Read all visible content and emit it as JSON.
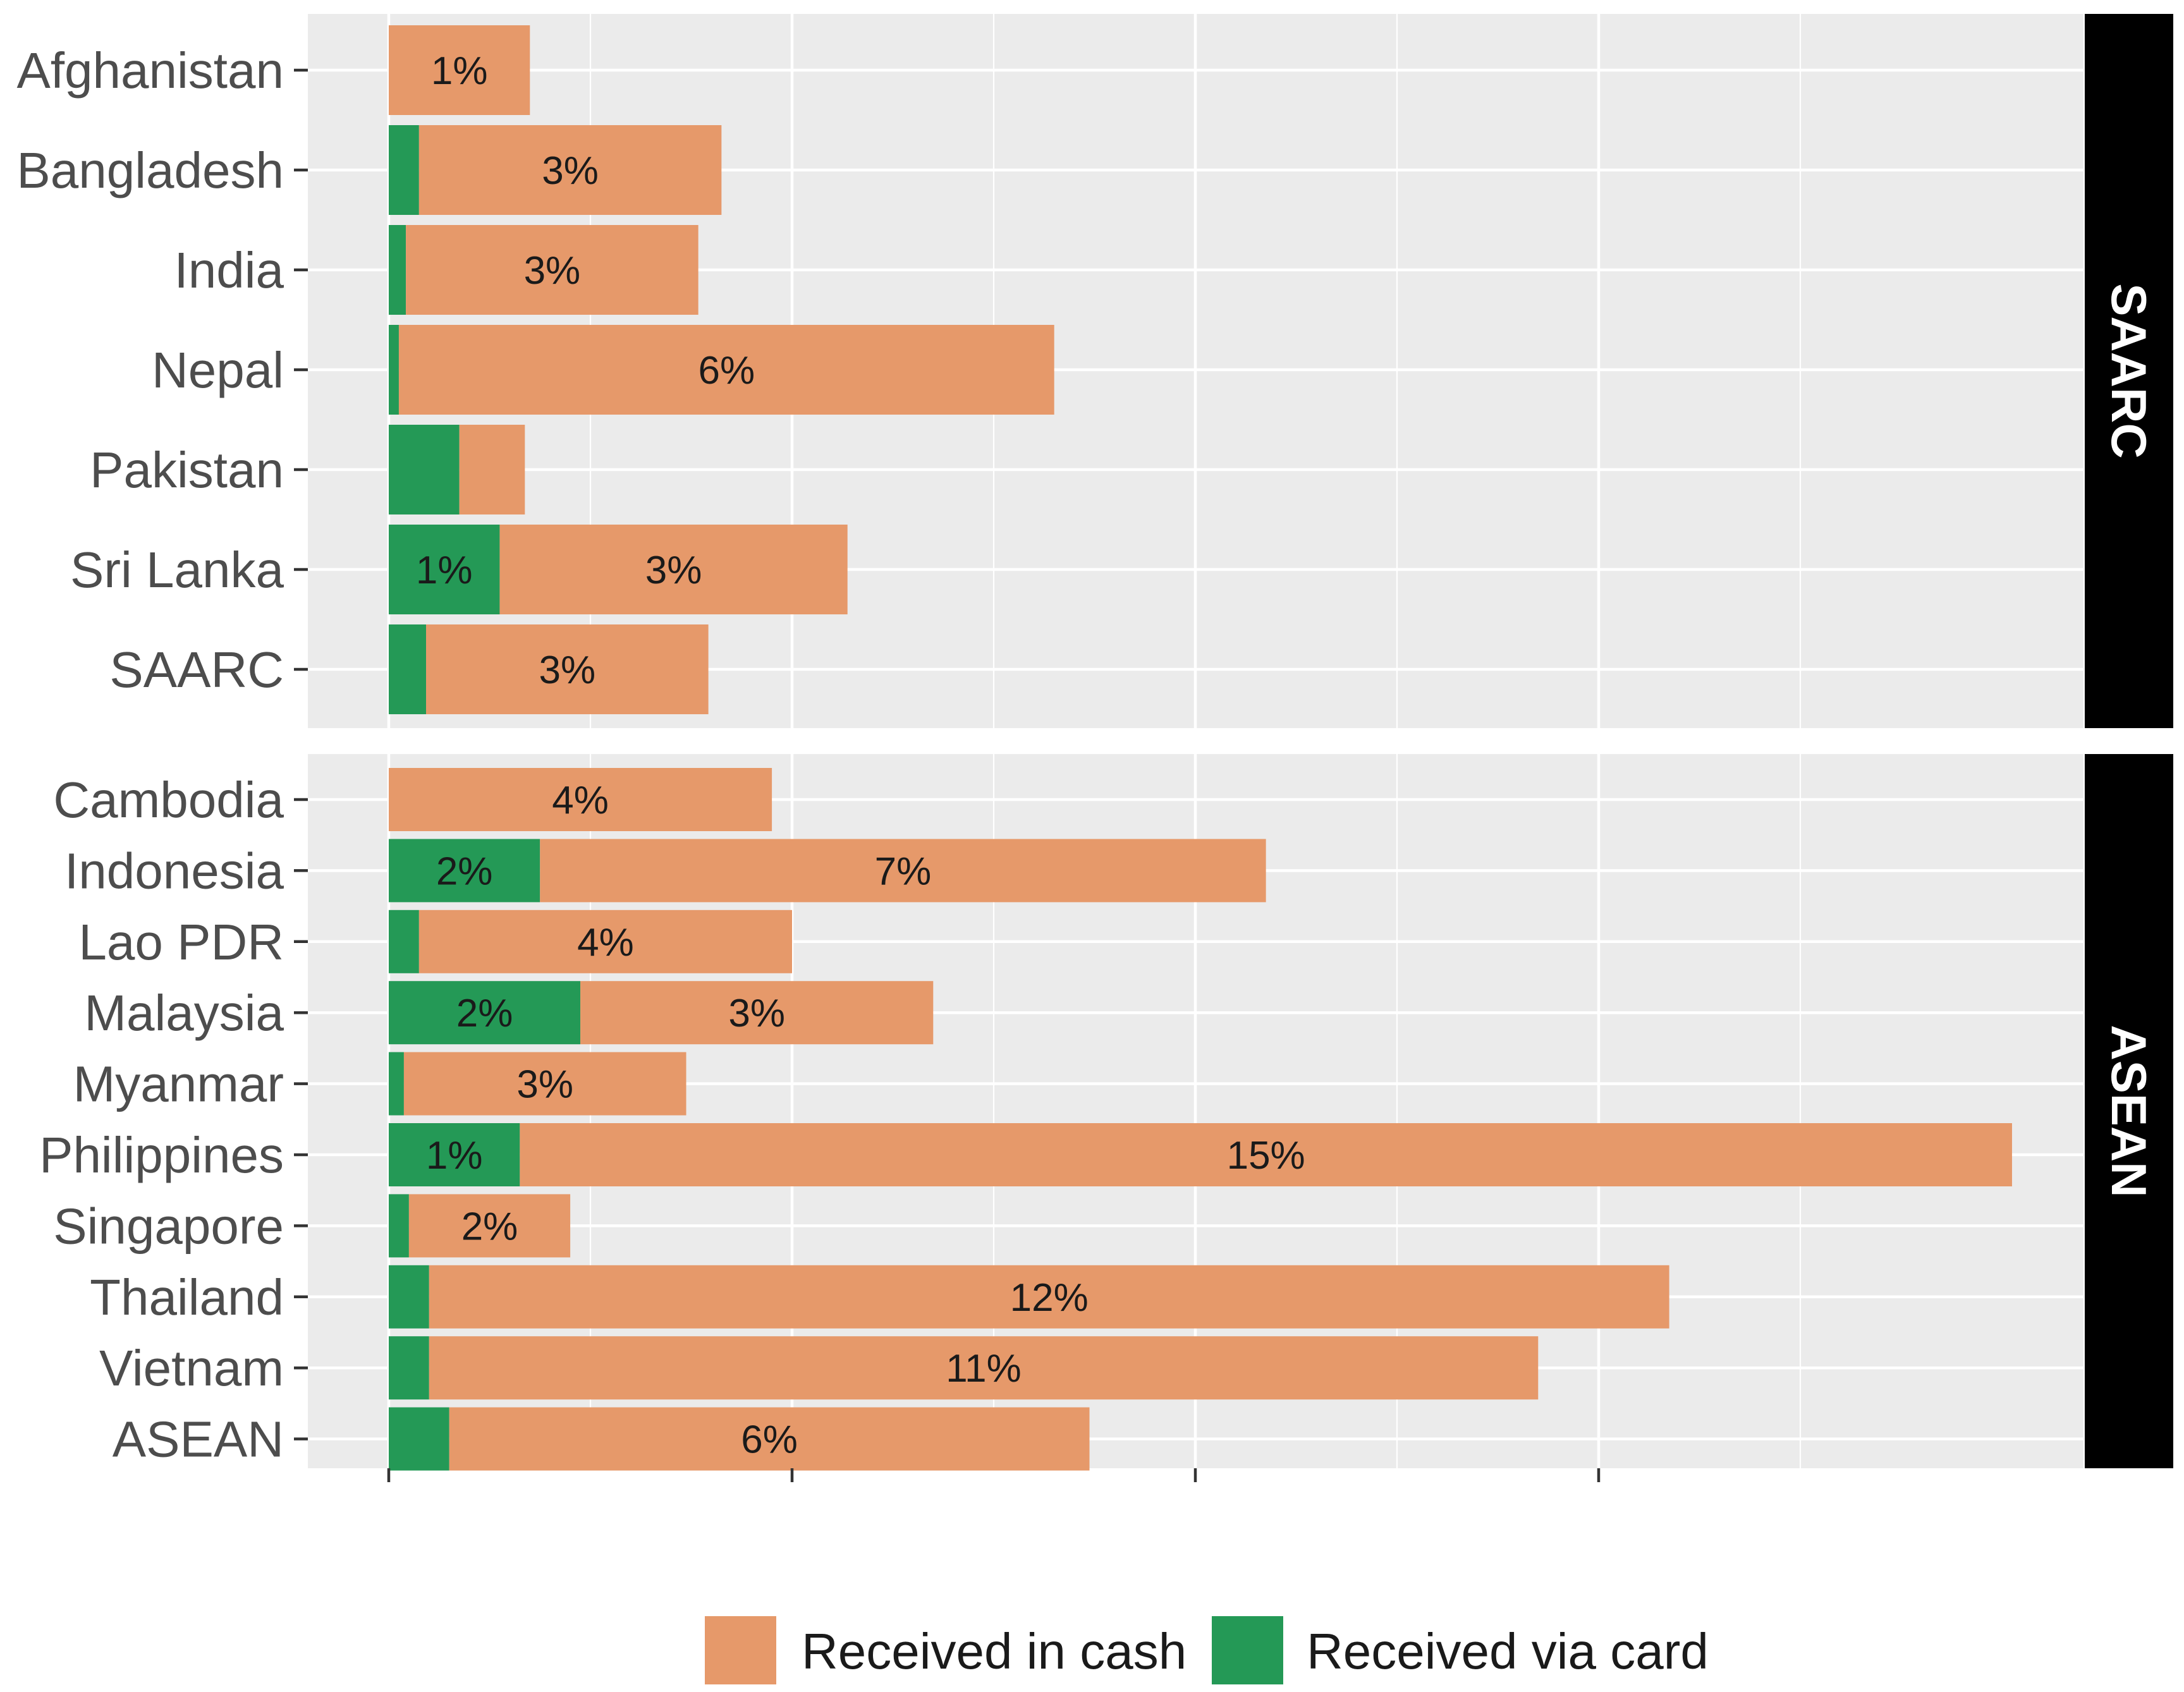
{
  "chart_data": {
    "type": "bar",
    "orientation": "horizontal",
    "stacked": true,
    "title": "",
    "xlabel": "",
    "ylabel": "",
    "xlim": [
      0,
      17
    ],
    "x_tick_labels_visible": false,
    "grid": true,
    "legend_position": "bottom",
    "colors": {
      "Received in cash": "#e6996a",
      "Received via card": "#249956"
    },
    "legend": [
      {
        "name": "Received in cash",
        "color": "#e6996a"
      },
      {
        "name": "Received via card",
        "color": "#249956"
      }
    ],
    "panels": [
      {
        "strip": "SAARC",
        "rows": [
          {
            "category": "Afghanistan",
            "card": 0.0,
            "cash": 1.4,
            "card_label": "",
            "cash_label": "1%"
          },
          {
            "category": "Bangladesh",
            "card": 0.3,
            "cash": 3.0,
            "card_label": "",
            "cash_label": "3%"
          },
          {
            "category": "India",
            "card": 0.17,
            "cash": 2.9,
            "card_label": "",
            "cash_label": "3%"
          },
          {
            "category": "Nepal",
            "card": 0.1,
            "cash": 6.5,
            "card_label": "",
            "cash_label": "6%"
          },
          {
            "category": "Pakistan",
            "card": 0.7,
            "cash": 0.65,
            "card_label": "",
            "cash_label": ""
          },
          {
            "category": "Sri Lanka",
            "card": 1.1,
            "cash": 3.45,
            "card_label": "1%",
            "cash_label": "3%"
          },
          {
            "category": "SAARC",
            "card": 0.37,
            "cash": 2.8,
            "card_label": "",
            "cash_label": "3%"
          }
        ]
      },
      {
        "strip": "ASEAN",
        "rows": [
          {
            "category": "Cambodia",
            "card": 0.0,
            "cash": 3.8,
            "card_label": "",
            "cash_label": "4%"
          },
          {
            "category": "Indonesia",
            "card": 1.5,
            "cash": 7.2,
            "card_label": "2%",
            "cash_label": "7%"
          },
          {
            "category": "Lao PDR",
            "card": 0.3,
            "cash": 3.7,
            "card_label": "",
            "cash_label": "4%"
          },
          {
            "category": "Malaysia",
            "card": 1.9,
            "cash": 3.5,
            "card_label": "2%",
            "cash_label": "3%"
          },
          {
            "category": "Myanmar",
            "card": 0.15,
            "cash": 2.8,
            "card_label": "",
            "cash_label": "3%"
          },
          {
            "category": "Philippines",
            "card": 1.3,
            "cash": 14.8,
            "card_label": "1%",
            "cash_label": "15%"
          },
          {
            "category": "Singapore",
            "card": 0.2,
            "cash": 1.6,
            "card_label": "",
            "cash_label": "2%"
          },
          {
            "category": "Thailand",
            "card": 0.4,
            "cash": 12.3,
            "card_label": "",
            "cash_label": "12%"
          },
          {
            "category": "Vietnam",
            "card": 0.4,
            "cash": 11.0,
            "card_label": "",
            "cash_label": "11%"
          },
          {
            "category": "ASEAN",
            "card": 0.6,
            "cash": 6.35,
            "card_label": "",
            "cash_label": "6%"
          }
        ]
      }
    ]
  }
}
